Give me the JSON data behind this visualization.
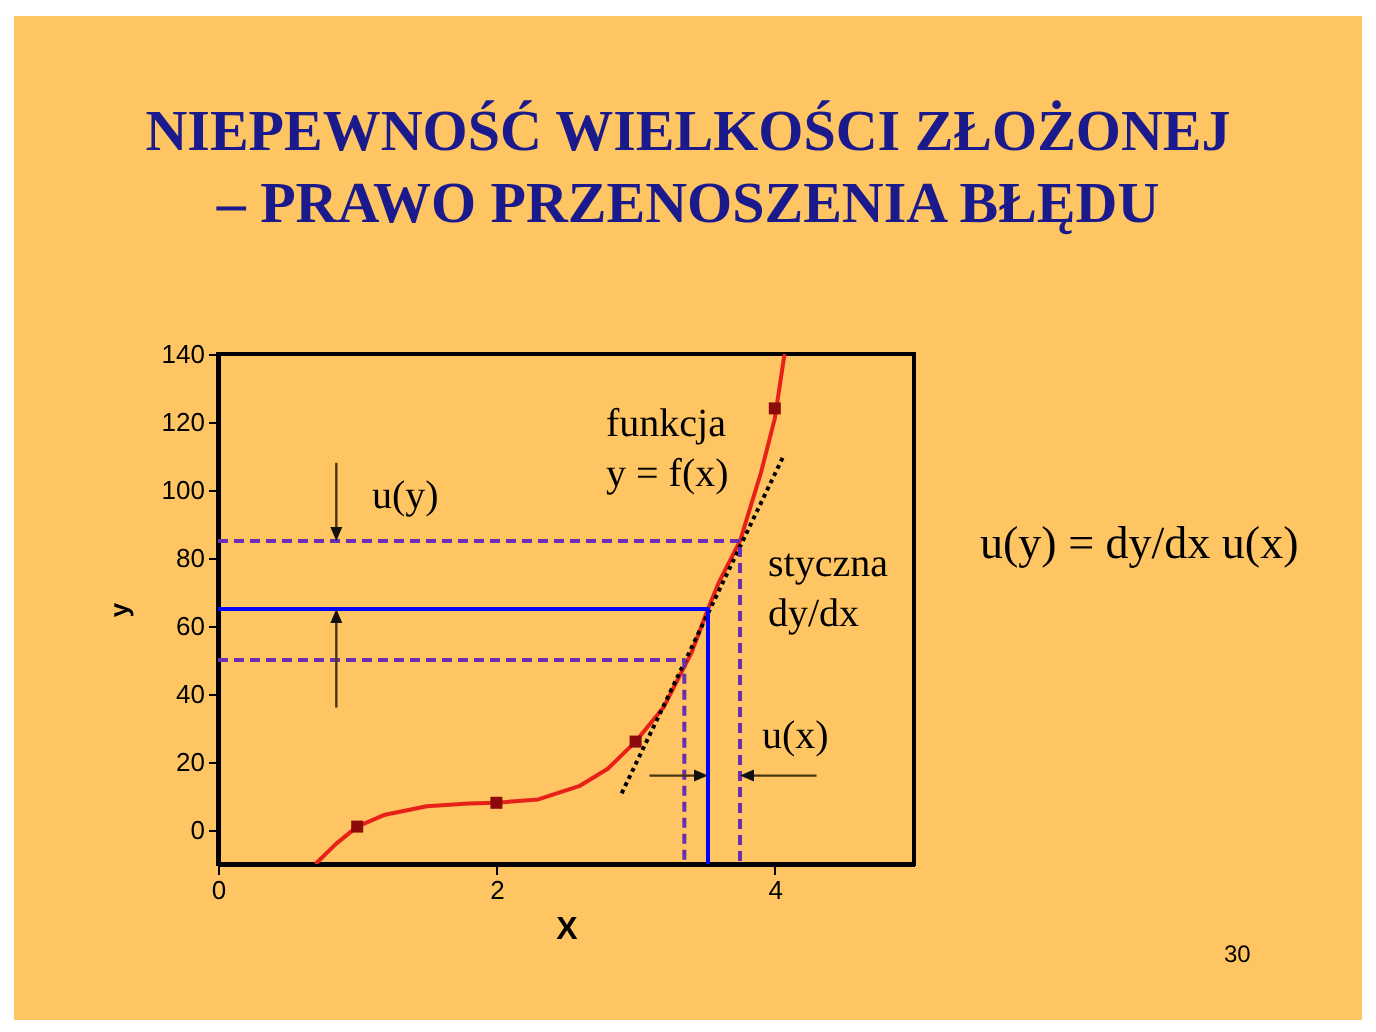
{
  "chart_data": {
    "type": "line",
    "title": "NIEPEWNOŚĆ WIELKOŚCI ZŁOŻONEJ\n– PRAWO PRZENOSZENIA BŁĘDU",
    "xlabel": "X",
    "ylabel": "y",
    "xlim": [
      0,
      5
    ],
    "xticks": [
      0,
      2,
      4
    ],
    "ylim": [
      -10,
      140
    ],
    "yticks": [
      0,
      20,
      40,
      60,
      80,
      100,
      120,
      140
    ],
    "grid": false,
    "series": [
      {
        "color": "#e8201a",
        "line_style": "solid",
        "x": [
          0.7,
          0.85,
          1,
          1.2,
          1.5,
          1.8,
          2,
          2.3,
          2.6,
          2.8,
          3,
          3.2,
          3.4,
          3.52,
          3.6,
          3.75,
          3.9,
          4,
          4.07
        ],
        "values": [
          -10,
          -4,
          1,
          4.5,
          7,
          7.8,
          8,
          9,
          13,
          18,
          26,
          36,
          52,
          65,
          73,
          85,
          105,
          121,
          140
        ]
      },
      {
        "type": "scatter",
        "color": "#8b0a0a",
        "marker": "square",
        "x": [
          1,
          2,
          3,
          4
        ],
        "values": [
          1,
          8,
          26,
          124
        ]
      },
      {
        "color": "#000000",
        "line_style": "dotted",
        "x": [
          2.9,
          4.06
        ],
        "values": [
          10.8,
          109.8
        ]
      },
      {
        "color": "#0000ff",
        "line_style": "solid",
        "x": [
          0,
          3.52,
          3.52
        ],
        "values": [
          65,
          65,
          -10
        ]
      },
      {
        "color": "#6a2fb0",
        "line_style": "dashed",
        "x": [
          0,
          3.75,
          3.75
        ],
        "values": [
          85,
          85,
          -10
        ]
      },
      {
        "color": "#6a2fb0",
        "line_style": "dashed",
        "x": [
          0,
          3.35,
          3.35
        ],
        "values": [
          50,
          50,
          -10
        ]
      }
    ],
    "annotations": [
      "funkcja\ny = f(x)",
      "u(y)",
      "styczna\ndy/dx",
      "u(x)",
      "u(y) = dy/dx u(x)",
      "30"
    ]
  }
}
